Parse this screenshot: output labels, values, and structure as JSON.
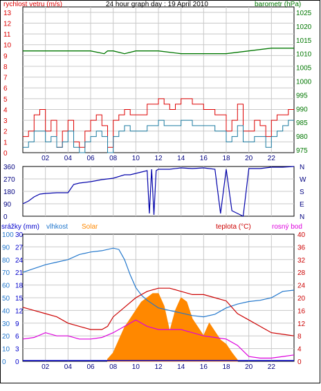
{
  "colors": {
    "wind_speed": "#dd0000",
    "wind_gust": "#dd0000",
    "wind_avg": "#1a7aa0",
    "barometer": "#007700",
    "direction": "#0000aa",
    "humidity": "#2277cc",
    "solar": "#ff8800",
    "temperature": "#cc0000",
    "dew_point": "#dd00dd",
    "rain": "#0000cc",
    "grid": "#c8c8c8",
    "hour_ticks": "#000080"
  },
  "chart_data": [
    {
      "type": "line",
      "title": "24 hour graph day : 19 April 2010",
      "y_left_label": "rychlost vetru (m/s)",
      "y_left_ticks": [
        "0",
        "1",
        "2",
        "3",
        "4",
        "5",
        "6",
        "7",
        "8",
        "9",
        "10",
        "11",
        "12",
        "13"
      ],
      "y_right_label": "barometr (hPa)",
      "y_right_ticks": [
        "975",
        "980",
        "985",
        "990",
        "995",
        "1000",
        "1005",
        "1010",
        "1015",
        "1020",
        "1025"
      ],
      "x_ticks": [
        "02",
        "04",
        "06",
        "08",
        "10",
        "12",
        "14",
        "16",
        "18",
        "20",
        "22"
      ],
      "xlim": [
        0,
        24
      ],
      "ylim_left": [
        0,
        13.5
      ],
      "ylim_right": [
        974,
        1027
      ],
      "series": [
        {
          "name": "wind_gust",
          "axis": "left",
          "x": [
            0,
            0.5,
            1,
            1.5,
            2,
            2.5,
            3,
            3.5,
            4,
            4.5,
            5,
            5.5,
            6,
            6.5,
            7,
            7.5,
            8,
            8.5,
            9,
            9.5,
            10,
            10.5,
            11,
            11.5,
            12,
            12.5,
            13,
            13.5,
            14,
            14.5,
            15,
            15.5,
            16,
            16.5,
            17,
            17.5,
            18,
            18.5,
            19,
            19.5,
            20,
            20.5,
            21,
            21.5,
            22,
            22.5,
            23,
            23.5
          ],
          "values": [
            1.5,
            2,
            3.5,
            4,
            2,
            3,
            0.5,
            2,
            3,
            1,
            0.5,
            2,
            3,
            3.5,
            2.5,
            0.5,
            3,
            3.5,
            4,
            3.5,
            3.5,
            3.5,
            4.5,
            4.5,
            5,
            4.5,
            4,
            4.5,
            5,
            5,
            4.5,
            4.5,
            4,
            4,
            3.5,
            3.5,
            2,
            3,
            4.5,
            2,
            2,
            3,
            2.5,
            1.5,
            3,
            3.5,
            3.5,
            4
          ]
        },
        {
          "name": "wind_avg",
          "axis": "left",
          "x": [
            0,
            0.5,
            1,
            1.5,
            2,
            2.5,
            3,
            3.5,
            4,
            4.5,
            5,
            5.5,
            6,
            6.5,
            7,
            7.5,
            8,
            8.5,
            9,
            9.5,
            10,
            10.5,
            11,
            11.5,
            12,
            12.5,
            13,
            13.5,
            14,
            14.5,
            15,
            15.5,
            16,
            16.5,
            17,
            17.5,
            18,
            18.5,
            19,
            19.5,
            20,
            20.5,
            21,
            21.5,
            22,
            22.5,
            23,
            23.5
          ],
          "values": [
            0.5,
            1,
            2,
            2,
            1,
            1.5,
            0.5,
            1,
            2,
            0.5,
            0,
            1,
            1.5,
            2,
            1.5,
            0,
            1.5,
            2,
            2.5,
            2,
            2,
            2,
            2.5,
            2.5,
            3,
            2.5,
            2.5,
            2.5,
            3,
            3,
            2.5,
            2.5,
            2.5,
            2.5,
            2,
            2,
            1,
            1.5,
            2.5,
            1,
            1,
            1.5,
            1.5,
            0.5,
            1.5,
            2,
            2.5,
            3
          ]
        },
        {
          "name": "barometer",
          "axis": "right",
          "x": [
            0,
            2,
            4,
            6,
            7.2,
            7.5,
            8,
            9,
            10,
            11,
            12,
            14,
            16,
            18,
            20,
            22,
            24
          ],
          "values": [
            1011,
            1011,
            1011,
            1011,
            1010,
            1011,
            1011,
            1010,
            1011,
            1011,
            1011,
            1010,
            1010,
            1010,
            1011,
            1012,
            1012
          ]
        }
      ]
    },
    {
      "type": "line",
      "y_left_ticks": [
        "0",
        "90",
        "180",
        "270",
        "360"
      ],
      "y_right_ticks": [
        "N",
        "W",
        "S",
        "E",
        "N"
      ],
      "x_ticks": [
        "02",
        "04",
        "06",
        "08",
        "10",
        "12",
        "14",
        "16",
        "18",
        "20",
        "22"
      ],
      "xlim": [
        0,
        24
      ],
      "ylim": [
        0,
        360
      ],
      "series": [
        {
          "name": "wind_direction",
          "x": [
            0,
            0.5,
            1,
            1.5,
            2,
            3,
            4,
            4.5,
            5,
            6,
            7,
            8,
            9,
            9.5,
            10,
            10.5,
            11,
            11.2,
            11.4,
            11.6,
            11.8,
            12,
            13,
            14,
            15,
            16,
            17,
            17.5,
            18,
            18.5,
            19,
            19.5,
            20,
            21,
            22,
            23,
            24
          ],
          "values": [
            90,
            110,
            140,
            160,
            165,
            170,
            170,
            230,
            240,
            250,
            265,
            275,
            300,
            300,
            310,
            320,
            330,
            20,
            340,
            10,
            330,
            340,
            340,
            350,
            345,
            350,
            340,
            20,
            340,
            40,
            20,
            0,
            345,
            345,
            355,
            355,
            360
          ]
        }
      ]
    },
    {
      "type": "line",
      "y_left_ticks": [
        "0",
        "3",
        "6",
        "9",
        "12",
        "15",
        "18",
        "21",
        "24",
        "27",
        "30"
      ],
      "y_hum_ticks": [
        "0",
        "10",
        "20",
        "30",
        "40",
        "50",
        "60",
        "70",
        "80",
        "90",
        "100"
      ],
      "y_right_ticks": [
        "0",
        "4",
        "8",
        "12",
        "16",
        "20",
        "24",
        "28",
        "32",
        "36",
        "40"
      ],
      "legend": [
        "srážky (mm)",
        "vlhkost",
        "Solar",
        "teplota (°C)",
        "rosný bod"
      ],
      "x_ticks": [
        "02",
        "04",
        "06",
        "08",
        "10",
        "12",
        "14",
        "16",
        "18",
        "20",
        "22"
      ],
      "xlim": [
        0,
        24
      ],
      "ylim_temp": [
        0,
        40
      ],
      "series": [
        {
          "name": "humidity",
          "unit": "%",
          "x": [
            0,
            1,
            2,
            3,
            4,
            5,
            6,
            7,
            8,
            8.5,
            9,
            9.5,
            10,
            10.5,
            11,
            12,
            13,
            14,
            15,
            16,
            17,
            18,
            19,
            20,
            21,
            22,
            23,
            24
          ],
          "values": [
            70,
            73,
            76,
            78,
            80,
            84,
            86,
            87,
            89,
            88,
            80,
            68,
            58,
            52,
            48,
            42,
            40,
            38,
            36,
            35,
            37,
            42,
            45,
            47,
            48,
            50,
            55,
            56
          ]
        },
        {
          "name": "solar",
          "x": [
            7.5,
            8,
            8.5,
            9,
            9.5,
            10,
            10.5,
            11,
            11.5,
            12,
            12.5,
            13,
            13.5,
            14,
            14.5,
            15,
            15.5,
            16,
            16.5,
            17,
            17.5,
            18,
            18.5,
            19
          ],
          "values": [
            0.5,
            2,
            5,
            8,
            10,
            12,
            14,
            15,
            16,
            16,
            13,
            7,
            12,
            15,
            14,
            10,
            8,
            6,
            9,
            7,
            5,
            4,
            2,
            0.3
          ]
        },
        {
          "name": "temperature",
          "unit": "°C",
          "x": [
            0,
            1,
            2,
            3,
            4,
            5,
            6,
            7,
            7.5,
            8,
            9,
            10,
            11,
            12,
            13,
            14,
            15,
            16,
            17,
            18,
            19,
            20,
            21,
            22,
            23,
            24
          ],
          "values": [
            17,
            16,
            15,
            14,
            12,
            11,
            10,
            10,
            11,
            14,
            17,
            20,
            22,
            23,
            23,
            22,
            21,
            21,
            20,
            19,
            15,
            13,
            11,
            9,
            8.5,
            8
          ]
        },
        {
          "name": "dew_point",
          "unit": "°C",
          "x": [
            0,
            1,
            2,
            3,
            4,
            5,
            6,
            7,
            8,
            9,
            10,
            11,
            12,
            13,
            14,
            15,
            16,
            17,
            18,
            19,
            20,
            21,
            22,
            23,
            24
          ],
          "values": [
            7,
            7.5,
            9,
            8,
            8,
            7,
            7,
            7.5,
            9,
            11,
            13,
            11,
            10,
            10,
            10,
            9,
            8,
            7.5,
            7,
            5,
            1.5,
            1,
            1,
            1.5,
            2
          ]
        },
        {
          "name": "rain",
          "unit": "mm",
          "x": [
            0,
            24
          ],
          "values": [
            0,
            0
          ]
        }
      ]
    }
  ]
}
